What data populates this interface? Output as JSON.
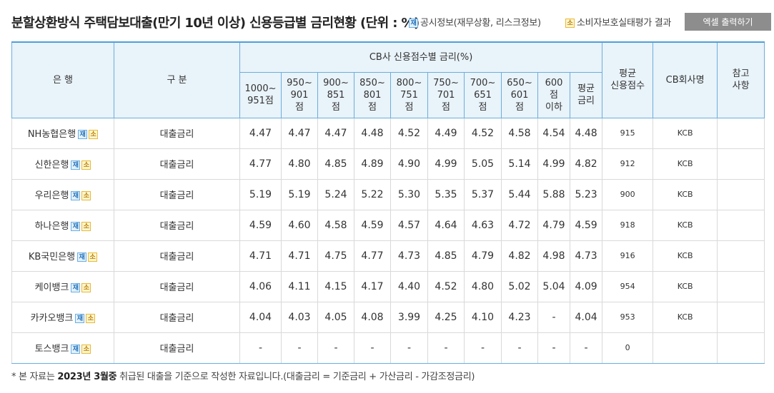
{
  "title": "분할상환방식 주택담보대출(만기 10년 이상) 신용등급별 금리현황 (단위 : %)",
  "legend": {
    "jae_badge": "재",
    "jae_text": "공시정보(재무상황, 리스크정보)",
    "so_badge": "소",
    "so_text": "소비자보호실태평가 결과"
  },
  "excel_button": "엑셀 출력하기",
  "table": {
    "headers": {
      "bank": "은 행",
      "type": "구 분",
      "cb_group": "CB사 신용점수별 금리(%)",
      "bands": [
        "1000~\n951점",
        "950~\n901\n점",
        "900~\n851\n점",
        "850~\n801\n점",
        "800~\n751\n점",
        "750~\n701\n점",
        "700~\n651\n점",
        "650~\n601\n점",
        "600\n점\n이하",
        "평균\n금리"
      ],
      "avg_score": "평균\n신용점수",
      "cb_company": "CB회사명",
      "note": "참고\n사항"
    },
    "rows": [
      {
        "bank": "NH농협은행",
        "type": "대출금리",
        "rates": [
          "4.47",
          "4.47",
          "4.47",
          "4.48",
          "4.52",
          "4.49",
          "4.52",
          "4.58",
          "4.54",
          "4.48"
        ],
        "score": "915",
        "cb": "KCB",
        "note": ""
      },
      {
        "bank": "신한은행",
        "type": "대출금리",
        "rates": [
          "4.77",
          "4.80",
          "4.85",
          "4.89",
          "4.90",
          "4.99",
          "5.05",
          "5.14",
          "4.99",
          "4.82"
        ],
        "score": "912",
        "cb": "KCB",
        "note": ""
      },
      {
        "bank": "우리은행",
        "type": "대출금리",
        "rates": [
          "5.19",
          "5.19",
          "5.24",
          "5.22",
          "5.30",
          "5.35",
          "5.37",
          "5.44",
          "5.88",
          "5.23"
        ],
        "score": "900",
        "cb": "KCB",
        "note": ""
      },
      {
        "bank": "하나은행",
        "type": "대출금리",
        "rates": [
          "4.59",
          "4.60",
          "4.58",
          "4.59",
          "4.57",
          "4.64",
          "4.63",
          "4.72",
          "4.79",
          "4.59"
        ],
        "score": "918",
        "cb": "KCB",
        "note": ""
      },
      {
        "bank": "KB국민은행",
        "type": "대출금리",
        "rates": [
          "4.71",
          "4.71",
          "4.75",
          "4.77",
          "4.73",
          "4.85",
          "4.79",
          "4.82",
          "4.98",
          "4.73"
        ],
        "score": "916",
        "cb": "KCB",
        "note": ""
      },
      {
        "bank": "케이뱅크",
        "type": "대출금리",
        "rates": [
          "4.06",
          "4.11",
          "4.15",
          "4.17",
          "4.40",
          "4.52",
          "4.80",
          "5.02",
          "5.04",
          "4.09"
        ],
        "score": "954",
        "cb": "KCB",
        "note": ""
      },
      {
        "bank": "카카오뱅크",
        "type": "대출금리",
        "rates": [
          "4.04",
          "4.03",
          "4.05",
          "4.08",
          "3.99",
          "4.25",
          "4.10",
          "4.23",
          "-",
          "4.04"
        ],
        "score": "953",
        "cb": "KCB",
        "note": ""
      },
      {
        "bank": "토스뱅크",
        "type": "대출금리",
        "rates": [
          "-",
          "-",
          "-",
          "-",
          "-",
          "-",
          "-",
          "-",
          "-",
          "-"
        ],
        "score": "0",
        "cb": "",
        "note": ""
      }
    ]
  },
  "footnote": {
    "prefix": "* 본 자료는 ",
    "period": "2023년 3월중",
    "suffix": " 취급된 대출을 기준으로 작성한 자료입니다.(대출금리 = 기준금리 + 가산금리 - 가감조정금리)"
  }
}
